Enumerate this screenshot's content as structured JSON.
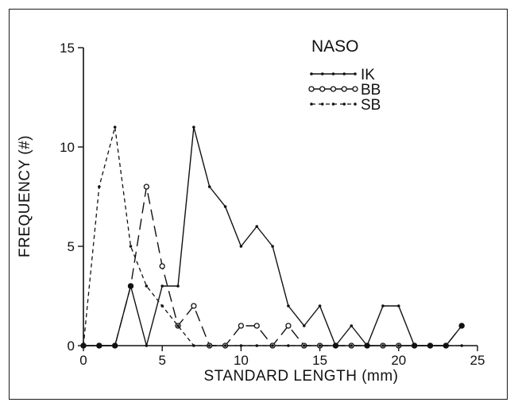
{
  "chart_data": {
    "type": "line",
    "title": "",
    "legend_title": "NASO",
    "legend_position": "top-right",
    "xlabel": "STANDARD LENGTH (mm)",
    "ylabel": "FREQUENCY (#)",
    "xlim": [
      0,
      25
    ],
    "ylim": [
      0,
      15
    ],
    "xticks": [
      0,
      5,
      10,
      15,
      20,
      25
    ],
    "yticks": [
      0,
      5,
      10,
      15
    ],
    "grid": false,
    "series": [
      {
        "name": "IK",
        "style": "solid-small-dots",
        "color": "#111111",
        "x": [
          0,
          1,
          2,
          3,
          4,
          5,
          6,
          7,
          8,
          9,
          10,
          11,
          12,
          13,
          14,
          15,
          16,
          17,
          18,
          19,
          20,
          21,
          22,
          23,
          24
        ],
        "y": [
          0,
          0,
          0,
          3,
          0,
          3,
          3,
          11,
          8,
          7,
          5,
          6,
          5,
          2,
          1,
          2,
          0,
          1,
          0,
          2,
          2,
          0,
          0,
          0,
          1
        ]
      },
      {
        "name": "BB",
        "style": "long-dash-open-circles",
        "color": "#111111",
        "x": [
          0,
          1,
          2,
          3,
          4,
          5,
          6,
          7,
          8,
          9,
          10,
          11,
          12,
          13,
          14,
          15,
          16,
          17,
          18,
          19,
          20,
          21,
          22,
          23,
          24
        ],
        "y": [
          0,
          0,
          0,
          3,
          8,
          4,
          1,
          2,
          0,
          0,
          1,
          1,
          0,
          1,
          0,
          0,
          0,
          0,
          0,
          0,
          0,
          0,
          0,
          0,
          1
        ]
      },
      {
        "name": "SB",
        "style": "short-dash-small-dots",
        "color": "#111111",
        "x": [
          0,
          1,
          2,
          3,
          4,
          5,
          6,
          7,
          8,
          9,
          10,
          11,
          12,
          13,
          14,
          15,
          16,
          17,
          18,
          19,
          20,
          21,
          22,
          23,
          24
        ],
        "y": [
          0,
          8,
          11,
          5,
          3,
          2,
          1,
          0,
          0,
          0,
          0,
          0,
          0,
          0,
          0,
          0,
          0,
          0,
          0,
          0,
          0,
          0,
          0,
          0,
          0
        ]
      }
    ]
  }
}
